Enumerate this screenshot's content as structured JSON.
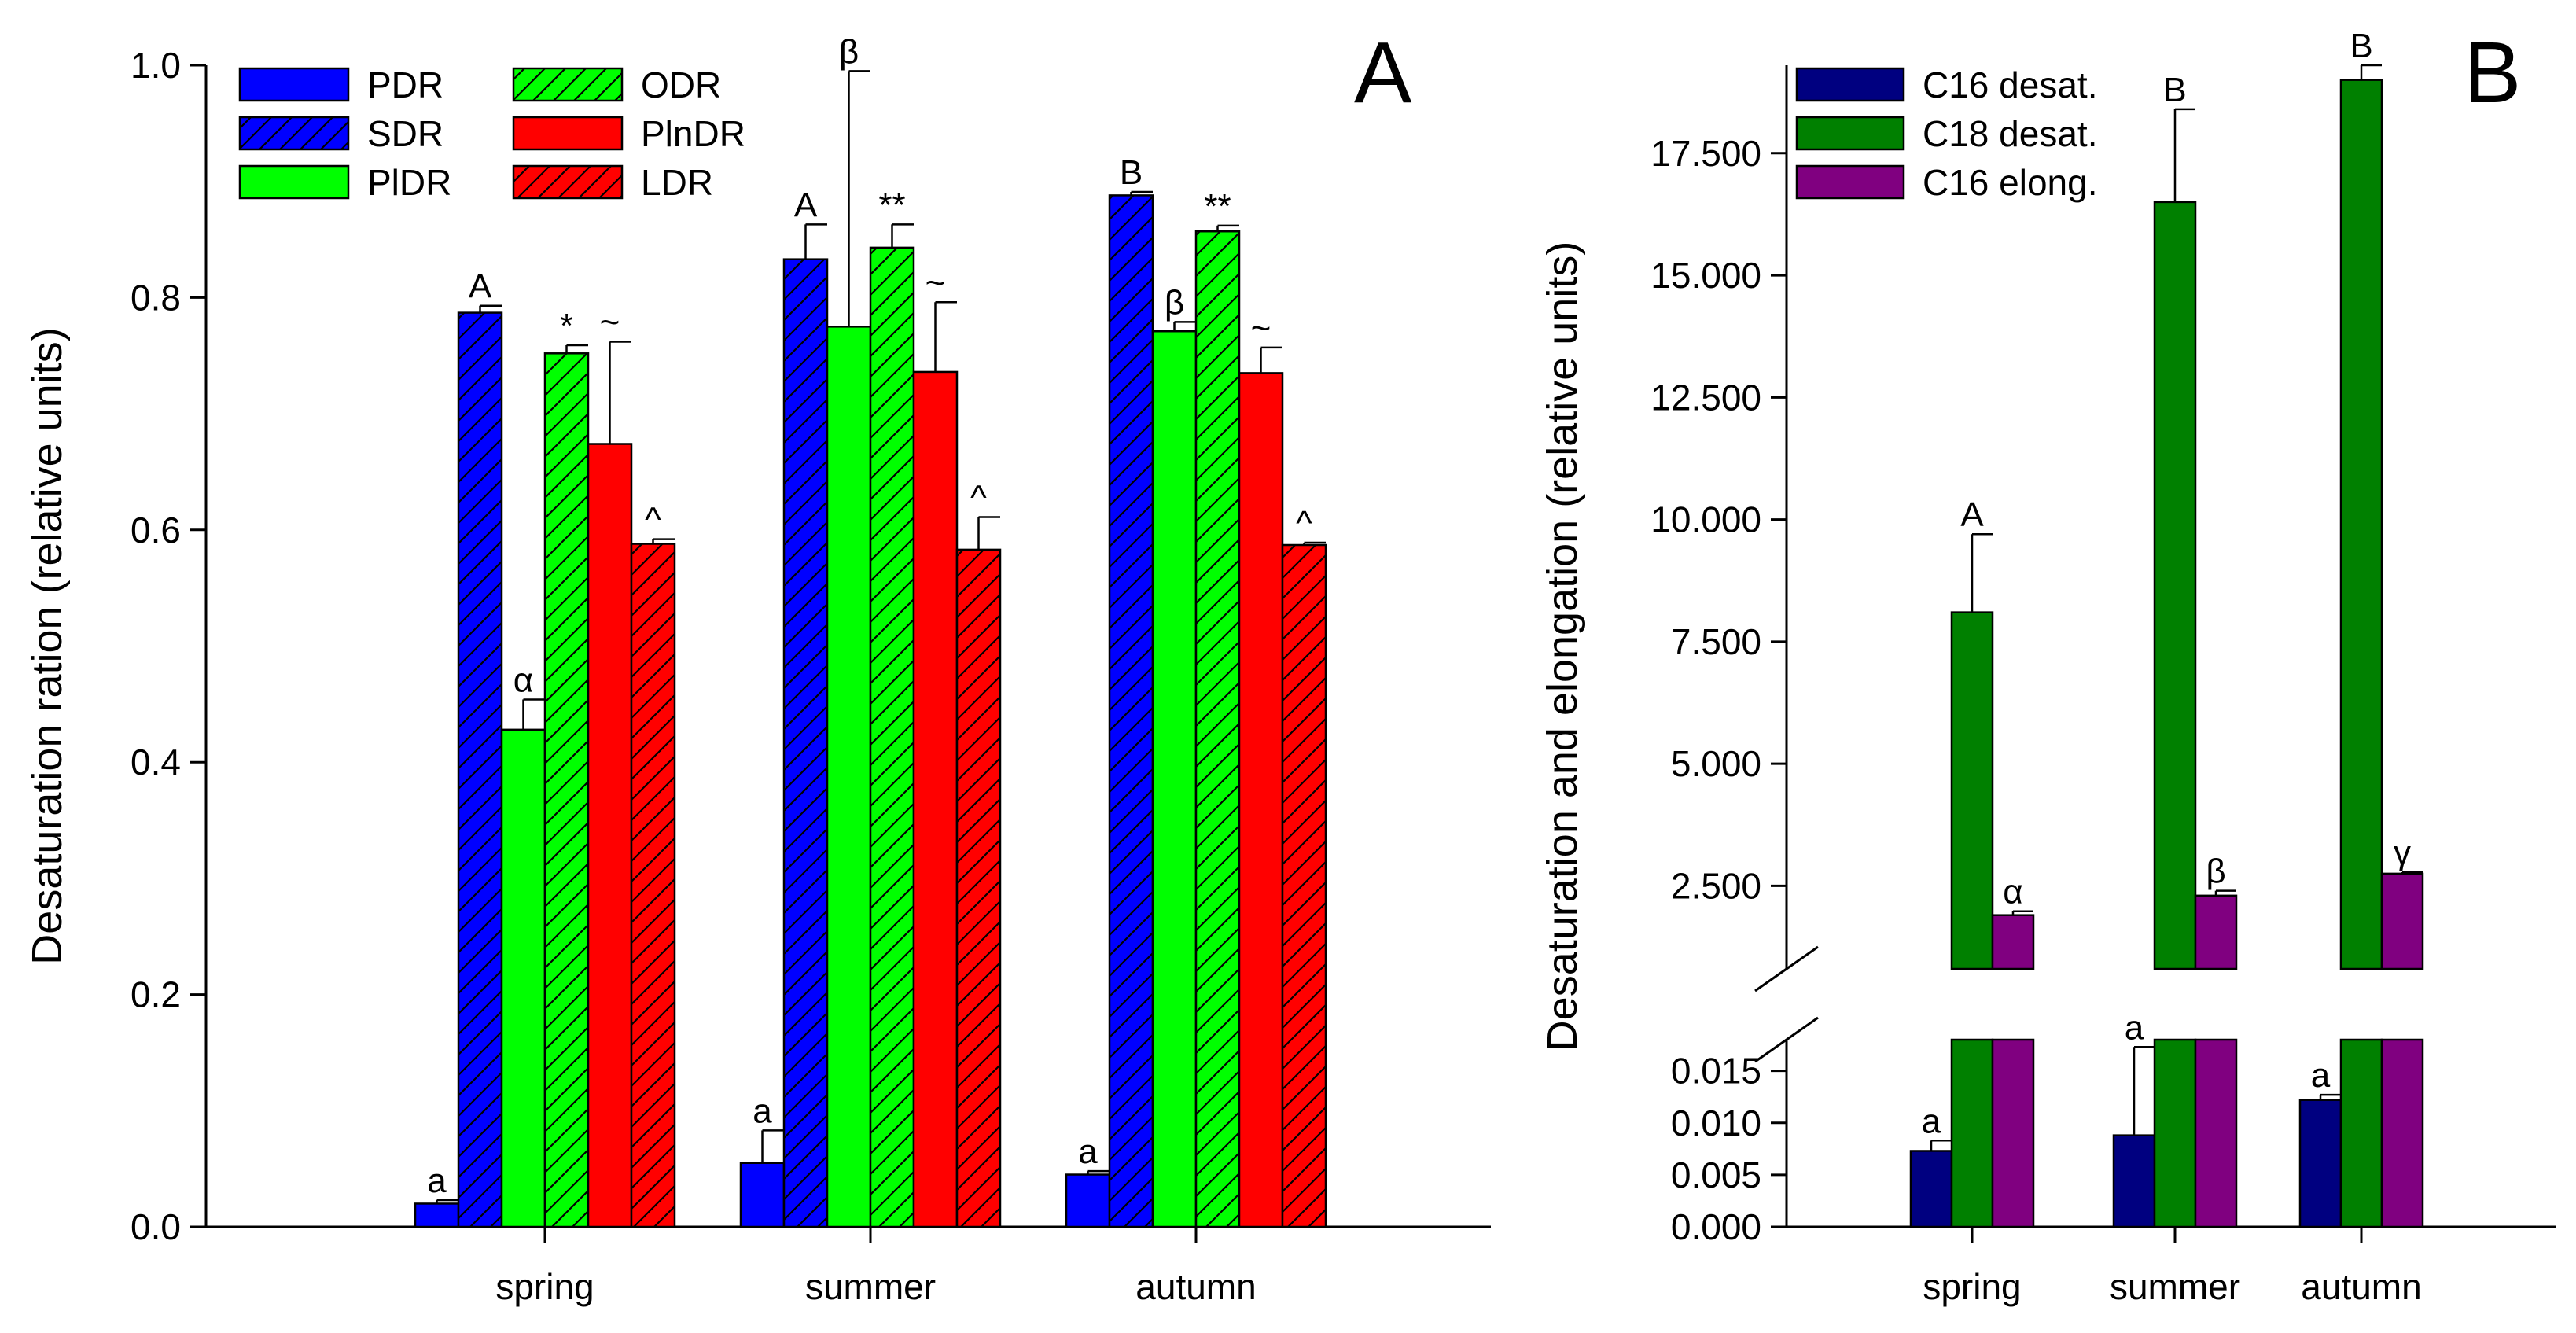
{
  "chart_data": [
    {
      "panel": "A",
      "type": "bar",
      "ylabel": "Desaturation ration (relative units)",
      "ylim": [
        0,
        1.0
      ],
      "yticks": [
        "0.0",
        "0.2",
        "0.4",
        "0.6",
        "0.8",
        "1.0"
      ],
      "categories": [
        "spring",
        "summer",
        "autumn"
      ],
      "series": [
        {
          "name": "PDR",
          "color": "#0000ff",
          "hatch": false,
          "values": [
            0.02,
            0.055,
            0.045
          ],
          "errors": [
            0.003,
            0.028,
            0.003
          ],
          "labels": [
            "a",
            "a",
            "a"
          ]
        },
        {
          "name": "SDR",
          "color": "#0000ff",
          "hatch": true,
          "values": [
            0.787,
            0.833,
            0.888
          ],
          "errors": [
            0.006,
            0.03,
            0.003
          ],
          "labels": [
            "A",
            "A",
            "B"
          ]
        },
        {
          "name": "PlDR",
          "color": "#00ff00",
          "hatch": false,
          "values": [
            0.428,
            0.775,
            0.771
          ],
          "errors": [
            0.026,
            0.22,
            0.008
          ],
          "labels": [
            "α",
            "β",
            "β"
          ]
        },
        {
          "name": "ODR",
          "color": "#00ff00",
          "hatch": true,
          "values": [
            0.752,
            0.843,
            0.857
          ],
          "errors": [
            0.007,
            0.02,
            0.005
          ],
          "labels": [
            "*",
            "**",
            "**"
          ]
        },
        {
          "name": "PlnDR",
          "color": "#ff0000",
          "hatch": false,
          "values": [
            0.674,
            0.736,
            0.735
          ],
          "errors": [
            0.088,
            0.06,
            0.022
          ],
          "labels": [
            "~",
            "~",
            "~"
          ]
        },
        {
          "name": "LDR",
          "color": "#ff0000",
          "hatch": true,
          "values": [
            0.588,
            0.583,
            0.587
          ],
          "errors": [
            0.004,
            0.028,
            0.002
          ],
          "labels": [
            "^",
            "^",
            "^"
          ]
        }
      ],
      "legend_position": "top-left"
    },
    {
      "panel": "B",
      "type": "bar",
      "ylabel": "Desaturation and elongation (relative units)",
      "broken_axis": true,
      "ylim_lower": [
        0,
        0.018
      ],
      "ylim_upper": [
        0.8,
        19.3
      ],
      "yticks_lower": [
        "0.000",
        "0.005",
        "0.010",
        "0.015"
      ],
      "yticks_upper": [
        "2.500",
        "5.000",
        "7.500",
        "10.000",
        "12.500",
        "15.000",
        "17.500"
      ],
      "categories": [
        "spring",
        "summer",
        "autumn"
      ],
      "series": [
        {
          "name": "C16 desat.",
          "color": "#000080",
          "values": [
            0.0073,
            0.0088,
            0.0122
          ],
          "errors": [
            0.001,
            0.0085,
            0.0005
          ],
          "labels": [
            "a",
            "a",
            "a"
          ]
        },
        {
          "name": "C18 desat.",
          "color": "#008000",
          "values": [
            8.1,
            16.5,
            19.0
          ],
          "errors": [
            1.6,
            1.9,
            0.3
          ],
          "labels": [
            "A",
            "B",
            "B"
          ]
        },
        {
          "name": "C16 elong.",
          "color": "#800080",
          "values": [
            1.9,
            2.3,
            2.75
          ],
          "errors": [
            0.08,
            0.1,
            0.03
          ],
          "labels": [
            "α",
            "β",
            "γ"
          ]
        }
      ],
      "legend_position": "top-left"
    }
  ]
}
